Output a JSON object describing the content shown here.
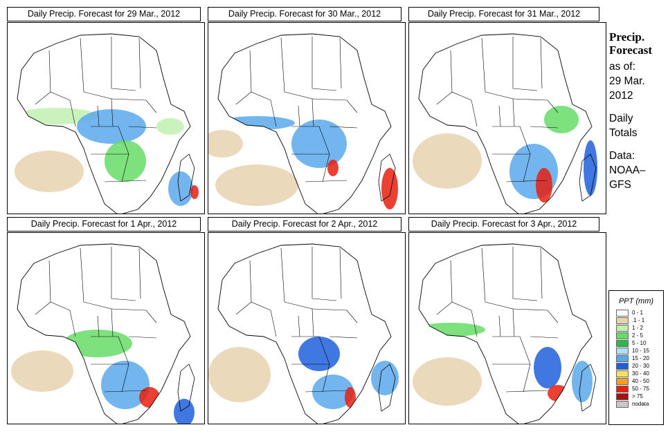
{
  "panels": [
    {
      "title": "Daily Precip. Forecast for  29 Mar., 2012"
    },
    {
      "title": "Daily Precip. Forecast for  30 Mar., 2012"
    },
    {
      "title": "Daily Precip. Forecast for  31 Mar., 2012"
    },
    {
      "title": "Daily Precip. Forecast for  1 Apr., 2012"
    },
    {
      "title": "Daily Precip. Forecast for  2 Apr., 2012"
    },
    {
      "title": "Daily Precip. Forecast for  3 Apr., 2012"
    }
  ],
  "side": {
    "heading_line1": "Precip.",
    "heading_line2": "Forecast",
    "asof_line1": "as of:",
    "asof_line2": "29 Mar.",
    "asof_line3": "2012",
    "daily_line1": "Daily",
    "daily_line2": "Totals",
    "data_line1": "Data:",
    "data_line2": "NOAA–",
    "data_line3": "GFS"
  },
  "legend": {
    "title": "PPT (mm)",
    "items": [
      {
        "label": "0 - 1",
        "color": "#ffffff"
      },
      {
        "label": ".1 - 1",
        "color": "#e8d2b0"
      },
      {
        "label": "1 - 2",
        "color": "#c0f0b0"
      },
      {
        "label": "2 - 5",
        "color": "#66dd66"
      },
      {
        "label": "5 - 10",
        "color": "#2fb84a"
      },
      {
        "label": "10 - 15",
        "color": "#aee0f4"
      },
      {
        "label": "15 - 20",
        "color": "#5aa8ec"
      },
      {
        "label": "20 - 30",
        "color": "#1e5fdc"
      },
      {
        "label": "30 - 40",
        "color": "#f8e060"
      },
      {
        "label": "40 - 50",
        "color": "#f5a01e"
      },
      {
        "label": "50 - 75",
        "color": "#e82010"
      },
      {
        "label": "> 75",
        "color": "#a81010"
      },
      {
        "label": "nodata",
        "color": "#c8c8c8"
      }
    ]
  },
  "colors": {
    "land": "#ffffff",
    "desert": "#e8d2b0",
    "light_rain": "#c0f0b0",
    "moderate_rain": "#66dd66",
    "heavy_rain": "#5aa8ec",
    "very_heavy_rain": "#1e5fdc",
    "extreme_rain": "#e82010"
  }
}
